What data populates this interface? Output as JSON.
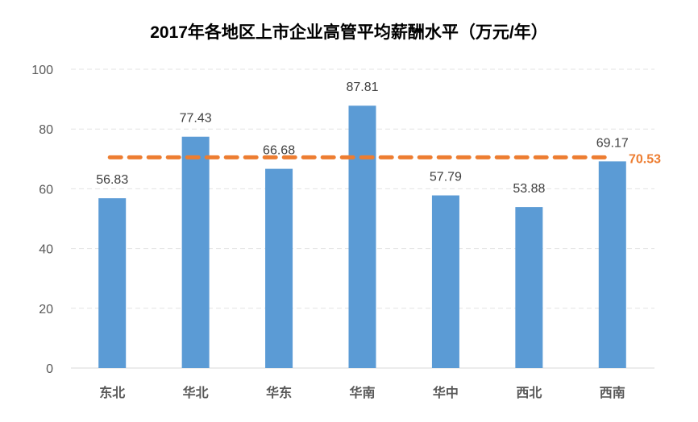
{
  "chart_data": {
    "type": "bar",
    "title": "2017年各地区上市企业高管平均薪酬水平（万元/年）",
    "categories": [
      "东北",
      "华北",
      "华东",
      "华南",
      "华中",
      "西北",
      "西南"
    ],
    "values": [
      56.83,
      77.43,
      66.68,
      87.81,
      57.79,
      53.88,
      69.17
    ],
    "data_labels": [
      "56.83",
      "77.43",
      "66.68",
      "87.81",
      "57.79",
      "53.88",
      "69.17"
    ],
    "ylim": [
      0,
      100
    ],
    "yticks": [
      "0",
      "20",
      "40",
      "60",
      "80",
      "100"
    ],
    "grid": true,
    "reference_line": {
      "value": 70.53,
      "label": "70.53",
      "style": "dashed"
    },
    "colors": {
      "bar": "#5B9BD5",
      "reference": "#ED7D31"
    },
    "xlabel": "",
    "ylabel": ""
  }
}
